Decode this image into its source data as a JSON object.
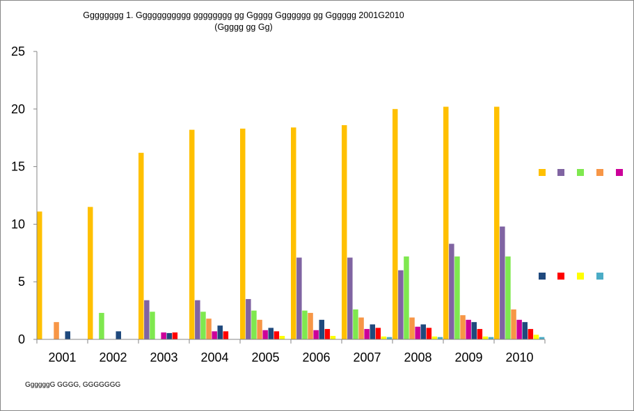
{
  "title_line1": "Gggggggg 1. Ggggggggggg gggggggg gg Ggggg Ggggggg gg Gggggg 2001G2010",
  "title_line2": "(Ggggg gg Gg)",
  "source_note": "GgggggG GGGG, GGGGGGG",
  "chart_data": {
    "type": "bar",
    "title": "Gggggggg 1. Ggggggggggg gggggggg gg Ggggg Ggggggg gg Gggggg 2001G2010",
    "subtitle": "(Ggggg gg Gg)",
    "categories": [
      "2001",
      "2002",
      "2003",
      "2004",
      "2005",
      "2006",
      "2007",
      "2008",
      "2009",
      "2010"
    ],
    "ylim": [
      0,
      25
    ],
    "yticks": [
      0,
      5,
      10,
      15,
      20,
      25
    ],
    "grid": false,
    "legend_position": "right",
    "series": [
      {
        "color": "#FFC000",
        "values": [
          11.1,
          11.5,
          16.2,
          18.2,
          18.3,
          18.4,
          18.6,
          20.0,
          20.2,
          20.2
        ]
      },
      {
        "color": "#8064A2",
        "values": [
          0,
          0,
          3.4,
          3.4,
          3.5,
          7.1,
          7.1,
          6.0,
          8.3,
          9.8
        ]
      },
      {
        "color": "#7FE84F",
        "values": [
          0,
          2.3,
          2.4,
          2.4,
          2.5,
          2.5,
          2.6,
          7.2,
          7.2,
          7.2
        ]
      },
      {
        "color": "#F79646",
        "values": [
          1.5,
          0,
          0,
          1.8,
          1.7,
          2.3,
          1.9,
          1.9,
          2.1,
          2.6
        ]
      },
      {
        "color": "#CC0099",
        "values": [
          0,
          0,
          0.6,
          0.7,
          0.8,
          0.8,
          0.9,
          1.1,
          1.7,
          1.7
        ]
      },
      {
        "color": "#1F497D",
        "values": [
          0.7,
          0.7,
          0.55,
          1.2,
          1.0,
          1.7,
          1.3,
          1.3,
          1.5,
          1.5
        ]
      },
      {
        "color": "#FF0000",
        "values": [
          0,
          0,
          0.6,
          0.7,
          0.7,
          0.9,
          1.0,
          1.0,
          0.9,
          0.9
        ]
      },
      {
        "color": "#FFFF00",
        "values": [
          0,
          0,
          0,
          0,
          0.3,
          0.3,
          0.25,
          0.25,
          0.25,
          0.4
        ]
      },
      {
        "color": "#4BACC6",
        "values": [
          0,
          0,
          0,
          0,
          0,
          0,
          0.2,
          0.2,
          0.2,
          0.2
        ]
      }
    ]
  }
}
